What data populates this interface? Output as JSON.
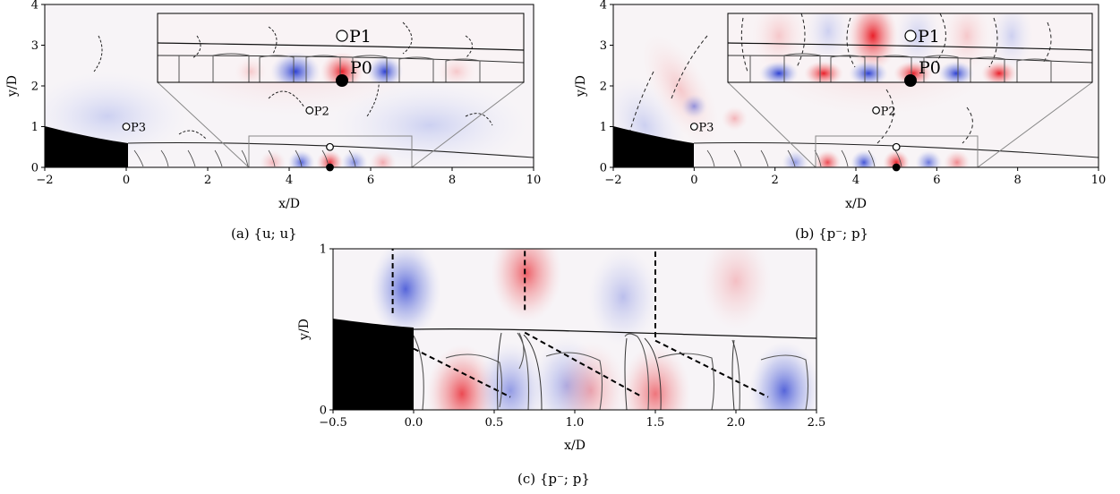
{
  "figure": {
    "captions": {
      "a": "(a)  {u; u}",
      "b": "(b)  {p⁻; p}",
      "c": "(c)  {p⁻; p}"
    }
  },
  "colors": {
    "positive": "#e8141e",
    "negative": "#2338d0",
    "nozzle": "#000000",
    "contour": "#333333"
  },
  "chart_data": [
    {
      "id": "a",
      "type": "heatmap",
      "xlabel": "x/D",
      "ylabel": "y/D",
      "xlim": [
        -2,
        10
      ],
      "ylim": [
        0,
        4
      ],
      "xticks": [
        "−2",
        "0",
        "2",
        "4",
        "6",
        "8",
        "10"
      ],
      "yticks": [
        "0",
        "1",
        "2",
        "3",
        "4"
      ],
      "points": [
        {
          "name": "P0",
          "x": 5.0,
          "y": 0.0,
          "filled": true
        },
        {
          "name": "P1",
          "x": 5.0,
          "y": 0.5,
          "filled": false
        },
        {
          "name": "P2",
          "x": 4.5,
          "y": 1.4,
          "filled": false
        },
        {
          "name": "P3",
          "x": 0.0,
          "y": 1.0,
          "filled": false
        }
      ],
      "inset_window": {
        "x": [
          3,
          7
        ],
        "y": [
          0,
          0.75
        ]
      },
      "lobes": [
        {
          "x": 4.3,
          "y": 0.12,
          "sign": -1,
          "amp": 0.8
        },
        {
          "x": 5.0,
          "y": 0.12,
          "sign": 1,
          "amp": 0.9
        },
        {
          "x": 5.6,
          "y": 0.12,
          "sign": -1,
          "amp": 0.6
        },
        {
          "x": 3.6,
          "y": 0.12,
          "sign": 1,
          "amp": 0.3
        },
        {
          "x": 6.3,
          "y": 0.12,
          "sign": 1,
          "amp": 0.35
        }
      ]
    },
    {
      "id": "b",
      "type": "heatmap",
      "xlabel": "x/D",
      "ylabel": "y/D",
      "xlim": [
        -2,
        10
      ],
      "ylim": [
        0,
        4
      ],
      "xticks": [
        "−2",
        "0",
        "2",
        "4",
        "6",
        "8",
        "10"
      ],
      "yticks": [
        "0",
        "1",
        "2",
        "3",
        "4"
      ],
      "points": [
        {
          "name": "P0",
          "x": 5.0,
          "y": 0.0,
          "filled": true
        },
        {
          "name": "P1",
          "x": 5.0,
          "y": 0.5,
          "filled": false
        },
        {
          "name": "P2",
          "x": 4.5,
          "y": 1.4,
          "filled": false
        },
        {
          "name": "P3",
          "x": 0.0,
          "y": 1.0,
          "filled": false
        }
      ],
      "inset_window": {
        "x": [
          3,
          7
        ],
        "y": [
          0,
          0.75
        ]
      },
      "lobes": [
        {
          "x": 3.3,
          "y": 0.12,
          "sign": 1,
          "amp": 0.8
        },
        {
          "x": 4.2,
          "y": 0.12,
          "sign": -1,
          "amp": 0.9
        },
        {
          "x": 5.0,
          "y": 0.12,
          "sign": 1,
          "amp": 1.0
        },
        {
          "x": 5.8,
          "y": 0.12,
          "sign": -1,
          "amp": 0.7
        },
        {
          "x": 2.5,
          "y": 0.12,
          "sign": -1,
          "amp": 0.5
        },
        {
          "x": 6.5,
          "y": 0.12,
          "sign": 1,
          "amp": 0.5
        },
        {
          "x": 0.0,
          "y": 1.5,
          "sign": -1,
          "amp": 0.5
        },
        {
          "x": 1.0,
          "y": 1.2,
          "sign": 1,
          "amp": 0.3
        }
      ]
    },
    {
      "id": "c",
      "type": "heatmap",
      "xlabel": "x/D",
      "ylabel": "y/D",
      "xlim": [
        -0.5,
        2.5
      ],
      "ylim": [
        0,
        1
      ],
      "xticks": [
        "−0.5",
        "0.0",
        "0.5",
        "1.0",
        "1.5",
        "2.0",
        "2.5"
      ],
      "yticks": [
        "0",
        "1"
      ],
      "lobes": [
        {
          "x": -0.05,
          "y": 0.75,
          "sign": -1,
          "amp": 0.8
        },
        {
          "x": 0.7,
          "y": 0.85,
          "sign": 1,
          "amp": 0.7
        },
        {
          "x": 0.3,
          "y": 0.1,
          "sign": 1,
          "amp": 0.8
        },
        {
          "x": 0.6,
          "y": 0.12,
          "sign": -1,
          "amp": 0.5
        },
        {
          "x": 0.95,
          "y": 0.15,
          "sign": -1,
          "amp": 0.4
        },
        {
          "x": 1.1,
          "y": 0.12,
          "sign": 1,
          "amp": 0.35
        },
        {
          "x": 1.5,
          "y": 0.1,
          "sign": 1,
          "amp": 0.6
        },
        {
          "x": 2.3,
          "y": 0.12,
          "sign": -1,
          "amp": 0.8
        },
        {
          "x": 1.3,
          "y": 0.7,
          "sign": -1,
          "amp": 0.3
        },
        {
          "x": 2.0,
          "y": 0.8,
          "sign": 1,
          "amp": 0.25
        }
      ],
      "shock_lines": [
        {
          "x": [
            -0.13,
            -0.13
          ],
          "y": [
            0.6,
            1.0
          ]
        },
        {
          "x": [
            0.69,
            0.69
          ],
          "y": [
            0.62,
            1.0
          ]
        },
        {
          "x": [
            1.5,
            1.5
          ],
          "y": [
            0.45,
            1.0
          ]
        },
        {
          "x": [
            0.0,
            0.6
          ],
          "y": [
            0.38,
            0.08
          ]
        },
        {
          "x": [
            0.69,
            1.42
          ],
          "y": [
            0.48,
            0.08
          ]
        },
        {
          "x": [
            1.5,
            2.2
          ],
          "y": [
            0.43,
            0.08
          ]
        }
      ]
    }
  ]
}
